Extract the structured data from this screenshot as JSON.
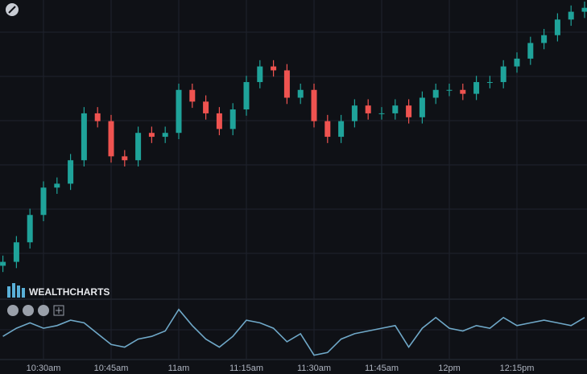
{
  "logo": "WEALTHCHARTS",
  "chart_data": [
    {
      "type": "candlestick",
      "categories": [
        null,
        null,
        null,
        "10:30am",
        null,
        null,
        null,
        null,
        "10:45am",
        null,
        null,
        null,
        null,
        "11am",
        null,
        null,
        null,
        null,
        "11:15am",
        null,
        null,
        null,
        null,
        "11:30am",
        null,
        null,
        null,
        null,
        "11:45am",
        null,
        null,
        null,
        null,
        "12pm",
        null,
        null,
        null,
        null,
        "12:15pm",
        null,
        null,
        null,
        null,
        null
      ],
      "open": [
        15,
        20,
        45,
        80,
        115,
        120,
        150,
        210,
        200,
        155,
        150,
        185,
        180,
        185,
        240,
        225,
        210,
        190,
        215,
        250,
        270,
        265,
        230,
        240,
        200,
        180,
        200,
        220,
        210,
        210,
        220,
        205,
        230,
        240,
        240,
        235,
        250,
        250,
        270,
        280,
        300,
        310,
        330,
        340
      ],
      "high": [
        28,
        53,
        88,
        123,
        128,
        158,
        218,
        218,
        208,
        163,
        193,
        193,
        193,
        248,
        248,
        233,
        218,
        223,
        258,
        278,
        278,
        273,
        248,
        248,
        208,
        208,
        228,
        228,
        218,
        228,
        228,
        238,
        248,
        248,
        248,
        258,
        258,
        278,
        288,
        308,
        318,
        338,
        348,
        353
      ],
      "low": [
        7,
        12,
        37,
        72,
        107,
        112,
        142,
        192,
        147,
        142,
        142,
        172,
        172,
        177,
        217,
        202,
        182,
        182,
        207,
        242,
        257,
        222,
        222,
        192,
        172,
        172,
        192,
        202,
        202,
        202,
        197,
        197,
        222,
        232,
        227,
        227,
        242,
        242,
        262,
        272,
        292,
        302,
        322,
        332
      ],
      "close": [
        20,
        45,
        80,
        115,
        120,
        150,
        210,
        200,
        155,
        150,
        185,
        180,
        185,
        240,
        225,
        210,
        190,
        215,
        250,
        270,
        265,
        230,
        240,
        200,
        180,
        200,
        220,
        210,
        210,
        220,
        205,
        230,
        240,
        240,
        235,
        250,
        250,
        270,
        280,
        300,
        310,
        330,
        340,
        345
      ],
      "up_color": "#1fa39a",
      "down_color": "#ef5350",
      "ylim": [
        0,
        355
      ]
    },
    {
      "type": "line",
      "values": [
        40,
        55,
        65,
        55,
        60,
        70,
        65,
        45,
        25,
        20,
        35,
        40,
        50,
        90,
        60,
        35,
        20,
        40,
        70,
        65,
        55,
        30,
        45,
        5,
        10,
        35,
        45,
        50,
        55,
        60,
        20,
        55,
        75,
        55,
        50,
        60,
        55,
        75,
        60,
        65,
        70,
        65,
        60,
        75
      ],
      "color": "#6fa8c8",
      "ylim": [
        0,
        100
      ]
    }
  ]
}
